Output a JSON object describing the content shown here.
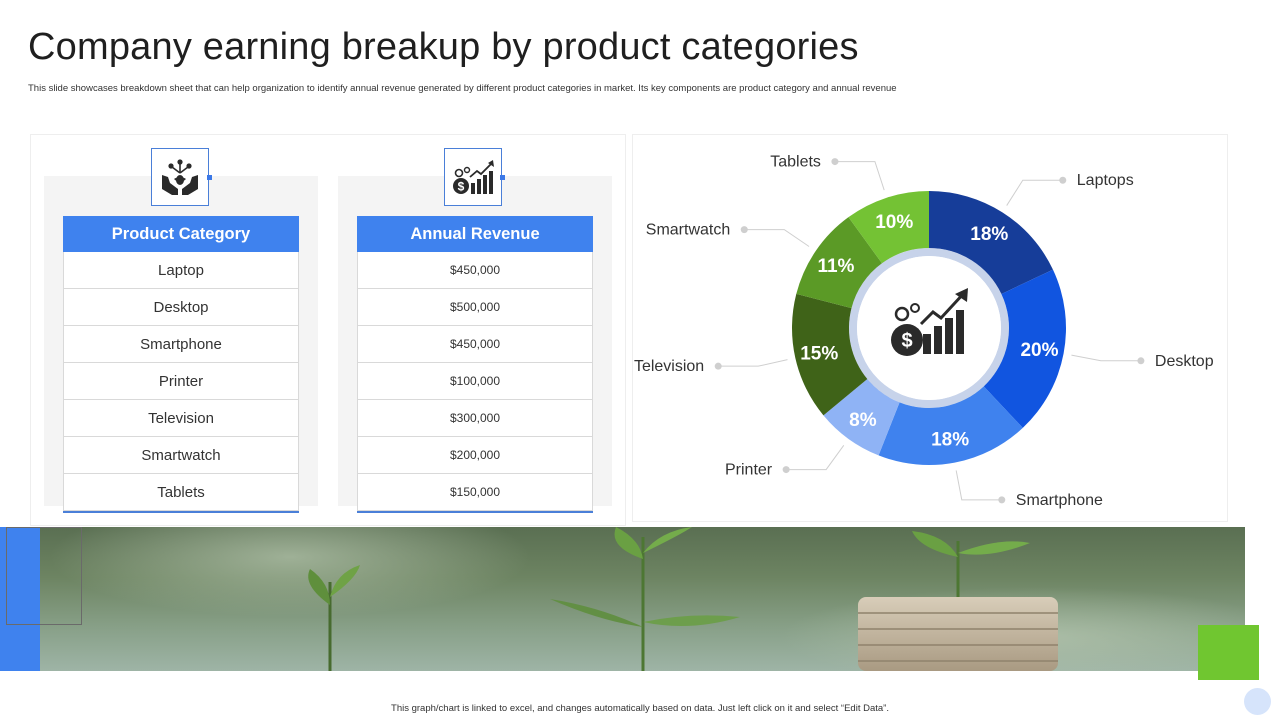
{
  "header": {
    "title": "Company earning breakup by product categories",
    "subtitle": "This slide showcases breakdown sheet that can help organization to identify annual revenue generated by different product categories in market. Its key components are product category and annual revenue"
  },
  "tables": {
    "category": {
      "header": "Product Category",
      "icon": "hands-growth-icon",
      "rows": [
        "Laptop",
        "Desktop",
        "Smartphone",
        "Printer",
        "Television",
        "Smartwatch",
        "Tablets"
      ]
    },
    "revenue": {
      "header": "Annual Revenue",
      "icon": "revenue-growth-chart-icon",
      "rows": [
        "$450,000",
        "$500,000",
        "$450,000",
        "$100,000",
        "$300,000",
        "$200,000",
        "$150,000"
      ]
    }
  },
  "chart_data": {
    "type": "pie",
    "style": "donut",
    "center_icon": "dollar-growth-chart-icon",
    "slices": [
      {
        "label": "Laptops",
        "value": 18,
        "display": "18%",
        "color": "#163d99"
      },
      {
        "label": "Desktop",
        "value": 20,
        "display": "20%",
        "color": "#1155e0"
      },
      {
        "label": "Smartphone",
        "value": 18,
        "display": "18%",
        "color": "#3f82ee"
      },
      {
        "label": "Printer",
        "value": 8,
        "display": "8%",
        "color": "#8fb3f5"
      },
      {
        "label": "Television",
        "value": 15,
        "display": "15%",
        "color": "#3f6318"
      },
      {
        "label": "Smartwatch",
        "value": 11,
        "display": "11%",
        "color": "#5b9a26"
      },
      {
        "label": "Tablets",
        "value": 10,
        "display": "10%",
        "color": "#74c234"
      }
    ]
  },
  "footer": {
    "note": "This graph/chart is linked to excel, and changes automatically based on data. Just left click on it and select “Edit Data”."
  },
  "colors": {
    "accent_blue": "#3f82ee",
    "accent_green": "#70c630"
  }
}
